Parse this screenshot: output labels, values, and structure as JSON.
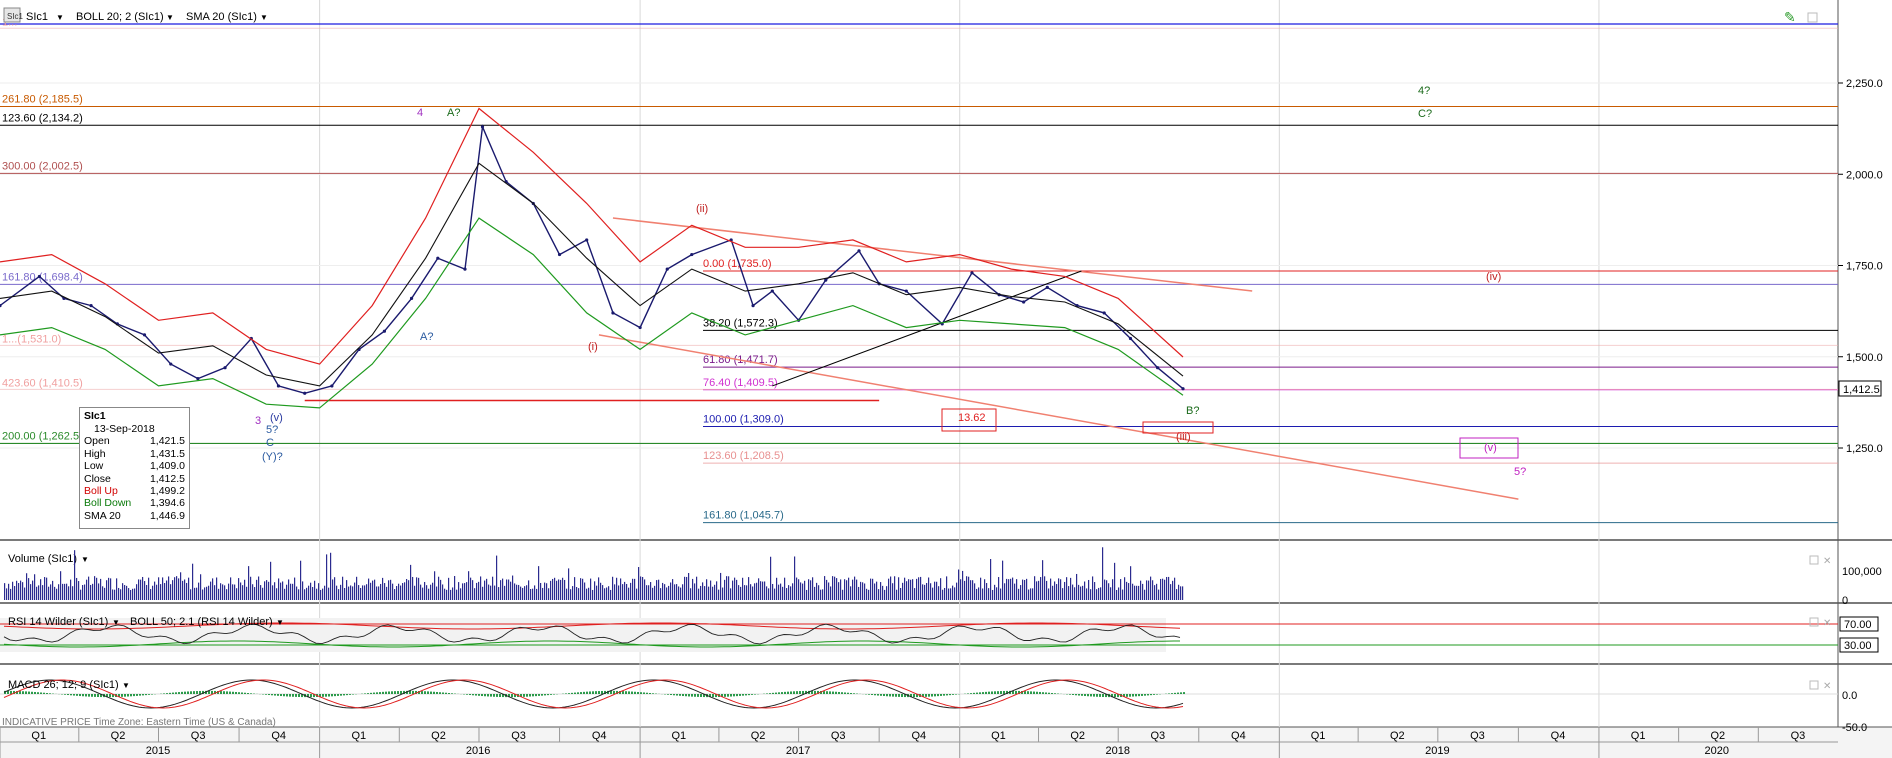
{
  "header": {
    "icon_label": "SIc1",
    "instrument": "SIc1",
    "indicator1": "BOLL 20; 2 (SIc1)",
    "indicator2": "SMA 20 (SIc1)"
  },
  "colors": {
    "price": "#1a1a6e",
    "boll_up": "#e02020",
    "boll_down": "#1f9a1f",
    "sma": "#111111",
    "volume": "#2b2b8f",
    "fib_top": "#1c1ce0",
    "current_price_bg": "#ffffff"
  },
  "main_panel": {
    "price_axis": [
      {
        "label": "2,250.0",
        "value": 2250
      },
      {
        "label": "2,000.0",
        "value": 2000
      },
      {
        "label": "1,750.0",
        "value": 1750
      },
      {
        "label": "1,500.0",
        "value": 1500
      },
      {
        "label": "1,250.0",
        "value": 1250
      }
    ],
    "current_price_label": "1,412.5",
    "fib_levels": [
      {
        "label": "261.80 (2,185.5)",
        "value": 2185.5,
        "color": "#c85a00"
      },
      {
        "label": "123.60 (2,134.2)",
        "value": 2134.2,
        "color": "#000000"
      },
      {
        "label": "300.00 (2,002.5)",
        "value": 2002.5,
        "color": "#b05050"
      },
      {
        "label": "161.80 (1,698.4)",
        "value": 1698.4,
        "color": "#7a6acb"
      },
      {
        "label": "200.00 (1,262.5)",
        "value": 1262.5,
        "color": "#2a8a2a"
      },
      {
        "label": "0.00 (1,735.0)",
        "value": 1735.0,
        "color": "#e02020"
      },
      {
        "label": "38.20 (1,572.3)",
        "value": 1572.3,
        "color": "#000000"
      },
      {
        "label": "61.80 (1,471.7)",
        "value": 1471.7,
        "color": "#7a1a8a"
      },
      {
        "label": "76.40 (1,409.5)",
        "value": 1409.5,
        "color": "#d030d0"
      },
      {
        "label": "100.00 (1,309.0)",
        "value": 1309.0,
        "color": "#1c1cb0"
      },
      {
        "label": "123.60 (1,208.5)",
        "value": 1208.5,
        "color": "#e89090"
      },
      {
        "label": "161.80 (1,045.7)",
        "value": 1045.7,
        "color": "#2a6a8a"
      }
    ],
    "faded_labels": [
      {
        "label": "1...",
        "value": 2400
      },
      {
        "label": "1...(1,531.0)",
        "value": 1531
      },
      {
        "label": "423.60 (1,410.5)",
        "value": 1410.5
      }
    ],
    "wave_labels": [
      {
        "text": "4",
        "color": "#a030c0"
      },
      {
        "text": "A?",
        "color": "#1a6a1a"
      },
      {
        "text": "A?",
        "color": "#2a5aa0"
      },
      {
        "text": "(i)",
        "color": "#c02020"
      },
      {
        "text": "(ii)",
        "color": "#c02020"
      },
      {
        "text": "(iii)",
        "color": "#c02020"
      },
      {
        "text": "(iv)",
        "color": "#c02020"
      },
      {
        "text": "(v)",
        "color": "#c020c0"
      },
      {
        "text": "(v)",
        "color": "#2a3aa0"
      },
      {
        "text": "3",
        "color": "#a030c0"
      },
      {
        "text": "5?",
        "color": "#2a5aa0"
      },
      {
        "text": "C",
        "color": "#2a5aa0"
      },
      {
        "text": "(Y)?",
        "color": "#2a5aa0"
      },
      {
        "text": "B?",
        "color": "#1a6a1a"
      },
      {
        "text": "4?",
        "color": "#1a6a1a"
      },
      {
        "text": "C?",
        "color": "#1a6a1a"
      },
      {
        "text": "5?",
        "color": "#c020c0"
      },
      {
        "text": "13.62",
        "color": "#e02020"
      }
    ]
  },
  "info_box": {
    "title": "SIc1",
    "date": "13-Sep-2018",
    "rows": [
      {
        "label": "Open",
        "value": "1,421.5"
      },
      {
        "label": "High",
        "value": "1,431.5"
      },
      {
        "label": "Low",
        "value": "1,409.0"
      },
      {
        "label": "Close",
        "value": "1,412.5"
      },
      {
        "label": "Boll Up",
        "value": "1,499.2"
      },
      {
        "label": "Boll Down",
        "value": "1,394.6"
      },
      {
        "label": "SMA 20",
        "value": "1,446.9"
      }
    ]
  },
  "volume_panel": {
    "title": "Volume (SIc1)",
    "axis": [
      {
        "label": "100,000"
      },
      {
        "label": "0"
      }
    ]
  },
  "rsi_panel": {
    "title": "RSI 14 Wilder (SIc1)",
    "title2": "BOLL 50; 2.1 (RSI 14 Wilder)",
    "axis": [
      {
        "label": "70.00",
        "value": 70
      },
      {
        "label": "30.00",
        "value": 30
      }
    ]
  },
  "macd_panel": {
    "title": "MACD 26; 12; 9 (SIc1)",
    "axis": [
      {
        "label": "0.0"
      },
      {
        "label": "-50.0"
      }
    ],
    "footer": "INDICATIVE PRICE   Time Zone: Eastern Time (US & Canada)"
  },
  "time_axis": {
    "quarters": [
      "Q1",
      "Q2",
      "Q3",
      "Q4",
      "Q1",
      "Q2",
      "Q3",
      "Q4",
      "Q1",
      "Q2",
      "Q3",
      "Q4",
      "Q1",
      "Q2",
      "Q3",
      "Q4",
      "Q1",
      "Q2",
      "Q3",
      "Q4",
      "Q1",
      "Q2",
      "Q3"
    ],
    "years": [
      "2015",
      "2016",
      "2017",
      "2018",
      "2019",
      "2020"
    ]
  },
  "chart_data": {
    "type": "line",
    "series": [
      {
        "x": [
          "2015-01-01",
          "2015-02-15",
          "2015-03-15",
          "2015-04-15",
          "2015-05-15",
          "2015-06-15",
          "2015-07-15",
          "2015-08-15",
          "2015-09-15",
          "2015-10-15",
          "2015-11-15",
          "2015-12-15",
          "2016-01-15",
          "2016-02-15",
          "2016-03-15",
          "2016-04-15",
          "2016-05-15",
          "2016-06-15",
          "2016-07-05",
          "2016-08-01",
          "2016-09-01",
          "2016-10-01",
          "2016-11-01",
          "2016-12-01",
          "2017-01-01",
          "2017-02-01",
          "2017-03-01",
          "2017-04-15",
          "2017-05-10",
          "2017-06-01",
          "2017-07-01",
          "2017-08-01",
          "2017-09-08",
          "2017-10-01",
          "2017-11-01",
          "2017-12-12",
          "2018-01-15",
          "2018-02-15",
          "2018-03-15",
          "2018-04-11",
          "2018-05-15",
          "2018-06-15",
          "2018-07-15",
          "2018-08-15",
          "2018-09-13"
        ],
        "values": [
          1640,
          1720,
          1660,
          1640,
          1590,
          1560,
          1480,
          1440,
          1470,
          1550,
          1420,
          1400,
          1420,
          1520,
          1570,
          1660,
          1770,
          1740,
          2130,
          1980,
          1920,
          1780,
          1820,
          1620,
          1580,
          1740,
          1780,
          1820,
          1640,
          1680,
          1600,
          1710,
          1790,
          1700,
          1680,
          1590,
          1730,
          1670,
          1650,
          1690,
          1640,
          1620,
          1550,
          1470,
          1412.5
        ]
      },
      {
        "x": [
          "2015-01-01",
          "2015-03-01",
          "2015-05-01",
          "2015-07-01",
          "2015-09-01",
          "2015-11-01",
          "2016-01-01",
          "2016-03-01",
          "2016-05-01",
          "2016-07-01",
          "2016-09-01",
          "2016-11-01",
          "2017-01-01",
          "2017-03-01",
          "2017-05-01",
          "2017-07-01",
          "2017-09-01",
          "2017-11-01",
          "2018-01-01",
          "2018-03-01",
          "2018-05-01",
          "2018-07-01",
          "2018-09-13"
        ],
        "values": [
          1760,
          1780,
          1700,
          1600,
          1620,
          1520,
          1480,
          1640,
          1880,
          2180,
          2060,
          1920,
          1760,
          1860,
          1800,
          1800,
          1820,
          1760,
          1780,
          1740,
          1720,
          1660,
          1499.2
        ]
      },
      {
        "x": [
          "2015-01-01",
          "2015-03-01",
          "2015-05-01",
          "2015-07-01",
          "2015-09-01",
          "2015-11-01",
          "2016-01-01",
          "2016-03-01",
          "2016-05-01",
          "2016-07-01",
          "2016-09-01",
          "2016-11-01",
          "2017-01-01",
          "2017-03-01",
          "2017-05-01",
          "2017-07-01",
          "2017-09-01",
          "2017-11-01",
          "2018-01-01",
          "2018-03-01",
          "2018-05-01",
          "2018-07-01",
          "2018-09-13"
        ],
        "values": [
          1560,
          1580,
          1520,
          1420,
          1440,
          1370,
          1360,
          1480,
          1660,
          1880,
          1780,
          1620,
          1520,
          1620,
          1560,
          1600,
          1640,
          1580,
          1600,
          1590,
          1580,
          1520,
          1394.6
        ]
      },
      {
        "x": [
          "2015-01-01",
          "2015-03-01",
          "2015-05-01",
          "2015-07-01",
          "2015-09-01",
          "2015-11-01",
          "2016-01-01",
          "2016-03-01",
          "2016-05-01",
          "2016-07-01",
          "2016-09-01",
          "2016-11-01",
          "2017-01-01",
          "2017-03-01",
          "2017-05-01",
          "2017-07-01",
          "2017-09-01",
          "2017-11-01",
          "2018-01-01",
          "2018-03-01",
          "2018-05-01",
          "2018-07-01",
          "2018-09-13"
        ],
        "values": [
          1660,
          1680,
          1610,
          1510,
          1530,
          1450,
          1420,
          1560,
          1770,
          2030,
          1920,
          1770,
          1640,
          1740,
          1680,
          1700,
          1730,
          1670,
          1690,
          1665,
          1650,
          1590,
          1446.9
        ]
      }
    ],
    "xlim": [
      "2015-01-01",
      "2020-09-30"
    ],
    "ylim": [
      1000,
      2400
    ],
    "grid": true
  }
}
